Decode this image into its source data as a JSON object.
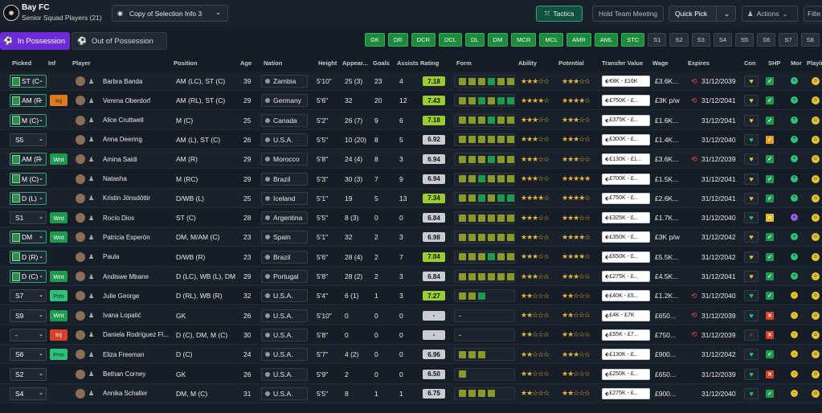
{
  "header": {
    "club_name": "Bay FC",
    "squad_name": "Senior Squad Players (21)",
    "selection": "Copy of Selection Info 3",
    "tactics": "Tactics",
    "hold_meeting": "Hold Team Meeting",
    "quick_pick": "Quick Pick",
    "actions": "Actions",
    "filter": "Filte"
  },
  "tabs": {
    "in_possession": "In Possession",
    "out_possession": "Out of Possession"
  },
  "position_chips": [
    {
      "label": "GK",
      "active": true
    },
    {
      "label": "DR",
      "active": true
    },
    {
      "label": "DCR",
      "active": true
    },
    {
      "label": "DCL",
      "active": true
    },
    {
      "label": "DL",
      "active": true
    },
    {
      "label": "DM",
      "active": true
    },
    {
      "label": "MCR",
      "active": true
    },
    {
      "label": "MCL",
      "active": true
    },
    {
      "label": "AMR",
      "active": true
    },
    {
      "label": "AML",
      "active": true
    },
    {
      "label": "STC",
      "active": true
    },
    {
      "label": "S1",
      "active": false
    },
    {
      "label": "S2",
      "active": false
    },
    {
      "label": "S3",
      "active": false
    },
    {
      "label": "S4",
      "active": false
    },
    {
      "label": "S5",
      "active": false
    },
    {
      "label": "S6",
      "active": false
    },
    {
      "label": "S7",
      "active": false
    },
    {
      "label": "S8",
      "active": false
    }
  ],
  "columns": {
    "picked": "Picked",
    "inf": "Inf",
    "player": "Player",
    "position": "Position",
    "age": "Age",
    "nation": "Nation",
    "height": "Height",
    "appearances": "Appear...",
    "goals": "Goals",
    "assists": "Assists",
    "rating": "Rating",
    "form": "Form",
    "ability": "Ability",
    "potential": "Potential",
    "transfer_value": "Transfer Value",
    "wage": "Wage",
    "expires": "Expires",
    "con": "Con",
    "shp": "SHP",
    "mor": "Mor",
    "playing": "Playin"
  },
  "colors": {
    "accent": "#6c2ad8",
    "green": "#1e8a3e",
    "rating_green": "#9acd32",
    "rating_grey": "#c9ccd2"
  },
  "players": [
    {
      "picked": "ST (C",
      "pitch": true,
      "inf": "",
      "name": "Barbra Banda",
      "position": "AM (LC), ST (C)",
      "age": "39",
      "nation": "Zambia",
      "height": "5'10\"",
      "apps": "25 (3)",
      "goals": "23",
      "assists": "4",
      "rating": "7.18",
      "rating_color": "#9acd32",
      "form": [
        "#8a9a2a",
        "#8a9a2a",
        "#8a9a2a",
        "#1e9a4e",
        "#8a9a2a",
        "#8a9a2a"
      ],
      "ability": "★★★☆☆",
      "potential": "★★★☆☆",
      "tv": "€8K - £16K",
      "wage": "£3.6K...",
      "expires": "31/12/2039",
      "clock": true,
      "con": "♥",
      "con_color": "#d9c84a",
      "shp": "✓",
      "shp_color": "#1e9a4e",
      "mor_color": "#2fc07a",
      "mor": "+"
    },
    {
      "picked": "AM (R",
      "pitch": true,
      "inf": "Inj",
      "inf_class": "inj2",
      "name": "Verena Oberdorf",
      "position": "AM (RL), ST (C)",
      "age": "29",
      "nation": "Germany",
      "height": "5'6\"",
      "apps": "32",
      "goals": "20",
      "assists": "12",
      "rating": "7.43",
      "rating_color": "#9acd32",
      "form": [
        "#8a9a2a",
        "#8a9a2a",
        "#1e9a4e",
        "#8a9a2a",
        "#1e9a4e",
        "#1e9a4e"
      ],
      "ability": "★★★★☆",
      "potential": "★★★★☆",
      "tv": "£750K - £...",
      "wage": "£3K p/w",
      "expires": "31/12/2041",
      "clock": true,
      "con": "♥",
      "con_color": "#d9c84a",
      "shp": "✓",
      "shp_color": "#1e9a4e",
      "mor_color": "#2fc07a",
      "mor": "+"
    },
    {
      "picked": "M (C)",
      "pitch": true,
      "inf": "",
      "name": "Alice Cruttwell",
      "position": "M (C)",
      "age": "25",
      "nation": "Canada",
      "height": "5'2\"",
      "apps": "26 (7)",
      "goals": "9",
      "assists": "6",
      "rating": "7.18",
      "rating_color": "#9acd32",
      "form": [
        "#8a9a2a",
        "#8a9a2a",
        "#8a9a2a",
        "#1e9a4e",
        "#8a9a2a",
        "#8a9a2a"
      ],
      "ability": "★★★☆☆",
      "potential": "★★★☆☆",
      "tv": "£375K - £...",
      "wage": "£1.6K...",
      "expires": "31/12/2041",
      "clock": false,
      "con": "♥",
      "con_color": "#d9c84a",
      "shp": "✓",
      "shp_color": "#1e9a4e",
      "mor_color": "#2fc07a",
      "mor": "+"
    },
    {
      "picked": "S5",
      "pitch": false,
      "inf": "",
      "name": "Anna Deering",
      "position": "AM (L), ST (C)",
      "age": "26",
      "nation": "U.S.A.",
      "height": "5'5\"",
      "apps": "10 (20)",
      "goals": "8",
      "assists": "5",
      "rating": "6.92",
      "rating_color": "#c9ccd2",
      "form": [
        "#8a9a2a",
        "#8a9a2a",
        "#8a9a2a",
        "#8a9a2a",
        "#8a9a2a",
        "#8a9a2a"
      ],
      "ability": "★★★☆☆",
      "potential": "★★★☆☆",
      "tv": "£300K - £...",
      "wage": "£1.4K...",
      "expires": "31/12/2040",
      "clock": false,
      "con": "♥",
      "con_color": "#2fc07a",
      "shp": "✓",
      "shp_color": "#e0a020",
      "mor_color": "#2fc07a",
      "mor": "+"
    },
    {
      "picked": "AM (R",
      "pitch": true,
      "inf": "Wnt",
      "inf_class": "wnt",
      "name": "Amina Saidi",
      "position": "AM (R)",
      "age": "29",
      "nation": "Morocco",
      "height": "5'8\"",
      "apps": "24 (4)",
      "goals": "8",
      "assists": "3",
      "rating": "6.94",
      "rating_color": "#c9ccd2",
      "form": [
        "#8a9a2a",
        "#8a9a2a",
        "#8a9a2a",
        "#1e9a4e",
        "#8a9a2a",
        "#8a9a2a"
      ],
      "ability": "★★★☆☆",
      "potential": "★★★☆☆",
      "tv": "£130K - £1...",
      "wage": "£3.6K...",
      "expires": "31/12/2039",
      "clock": true,
      "con": "♥",
      "con_color": "#d9c84a",
      "shp": "✓",
      "shp_color": "#1e9a4e",
      "mor_color": "#2fc07a",
      "mor": "+"
    },
    {
      "picked": "M (C)",
      "pitch": true,
      "inf": "",
      "name": "Natasha",
      "position": "M (RC)",
      "age": "29",
      "nation": "Brazil",
      "height": "5'3\"",
      "apps": "30 (3)",
      "goals": "7",
      "assists": "9",
      "rating": "6.94",
      "rating_color": "#c9ccd2",
      "form": [
        "#8a9a2a",
        "#8a9a2a",
        "#1e9a4e",
        "#8a9a2a",
        "#8a9a2a",
        "#8a9a2a"
      ],
      "ability": "★★★☆☆",
      "potential": "★★★★★",
      "tv": "£700K - £...",
      "wage": "£1.5K...",
      "expires": "31/12/2041",
      "clock": false,
      "con": "♥",
      "con_color": "#d9c84a",
      "shp": "✓",
      "shp_color": "#1e9a4e",
      "mor_color": "#2fc07a",
      "mor": "+"
    },
    {
      "picked": "D (L)",
      "pitch": true,
      "inf": "",
      "name": "Kristin Jónsdóttir",
      "position": "D/WB (L)",
      "age": "25",
      "nation": "Iceland",
      "height": "5'1\"",
      "apps": "19",
      "goals": "5",
      "assists": "13",
      "rating": "7.34",
      "rating_color": "#9acd32",
      "form": [
        "#8a9a2a",
        "#8a9a2a",
        "#1e9a4e",
        "#8a9a2a",
        "#1e9a4e",
        "#1e9a4e"
      ],
      "ability": "★★★★☆",
      "potential": "★★★★☆",
      "tv": "£750K - £...",
      "wage": "£2.6K...",
      "expires": "31/12/2041",
      "clock": false,
      "con": "♥",
      "con_color": "#d9c84a",
      "shp": "✓",
      "shp_color": "#1e9a4e",
      "mor_color": "#2fc07a",
      "mor": "+"
    },
    {
      "picked": "S1",
      "pitch": false,
      "inf": "Wnt",
      "inf_class": "wnt",
      "name": "Rocío Dios",
      "position": "ST (C)",
      "age": "28",
      "nation": "Argentina",
      "height": "5'5\"",
      "apps": "8 (3)",
      "goals": "0",
      "assists": "0",
      "rating": "6.84",
      "rating_color": "#c9ccd2",
      "form": [
        "#8a9a2a",
        "#8a9a2a",
        "#8a9a2a",
        "#8a9a2a",
        "#8a9a2a",
        "#8a9a2a"
      ],
      "ability": "★★★☆☆",
      "potential": "★★★☆☆",
      "tv": "£325K - £...",
      "wage": "£1.7K...",
      "expires": "31/12/2040",
      "clock": false,
      "con": "♥",
      "con_color": "#2fc07a",
      "shp": "≡",
      "shp_color": "#e0c02a",
      "mor_color": "#9a5ae0",
      "mor": "+"
    },
    {
      "picked": "DM",
      "pitch": true,
      "inf": "Wnt",
      "inf_class": "wnt",
      "name": "Patricia Esperón",
      "position": "DM, M/AM (C)",
      "age": "23",
      "nation": "Spain",
      "height": "5'1\"",
      "apps": "32",
      "goals": "2",
      "assists": "3",
      "rating": "6.98",
      "rating_color": "#c9ccd2",
      "form": [
        "#8a9a2a",
        "#8a9a2a",
        "#8a9a2a",
        "#8a9a2a",
        "#8a9a2a",
        "#8a9a2a"
      ],
      "ability": "★★★☆☆",
      "potential": "★★★★☆",
      "tv": "£350K - £...",
      "wage": "£3K p/w",
      "expires": "31/12/2042",
      "clock": false,
      "con": "♥",
      "con_color": "#d9c84a",
      "shp": "✓",
      "shp_color": "#1e9a4e",
      "mor_color": "#2fc07a",
      "mor": "+"
    },
    {
      "picked": "D (R)",
      "pitch": true,
      "inf": "",
      "name": "Paula",
      "position": "D/WB (R)",
      "age": "23",
      "nation": "Brazil",
      "height": "5'6\"",
      "apps": "28 (4)",
      "goals": "2",
      "assists": "7",
      "rating": "7.04",
      "rating_color": "#9acd32",
      "form": [
        "#8a9a2a",
        "#8a9a2a",
        "#8a9a2a",
        "#1e9a4e",
        "#8a9a2a",
        "#8a9a2a"
      ],
      "ability": "★★★☆☆",
      "potential": "★★★★☆",
      "tv": "£650K - £...",
      "wage": "£5.5K...",
      "expires": "31/12/2042",
      "clock": false,
      "con": "♥",
      "con_color": "#d9c84a",
      "shp": "✓",
      "shp_color": "#1e9a4e",
      "mor_color": "#2fc07a",
      "mor": "+"
    },
    {
      "picked": "D (C)",
      "pitch": true,
      "inf": "Wnt",
      "inf_class": "wnt",
      "name": "Andiswe Mbane",
      "position": "D (LC), WB (L), DM",
      "age": "29",
      "nation": "Portugal",
      "height": "5'8\"",
      "apps": "28 (2)",
      "goals": "2",
      "assists": "3",
      "rating": "6.84",
      "rating_color": "#c9ccd2",
      "form": [
        "#8a9a2a",
        "#8a9a2a",
        "#8a9a2a",
        "#8a9a2a",
        "#8a9a2a",
        "#8a9a2a"
      ],
      "ability": "★★★☆☆",
      "potential": "★★★☆☆",
      "tv": "£275K - £...",
      "wage": "£4.5K...",
      "expires": "31/12/2041",
      "clock": false,
      "con": "♥",
      "con_color": "#d9c84a",
      "shp": "✓",
      "shp_color": "#1e9a4e",
      "mor_color": "#2fc07a",
      "mor": "+"
    },
    {
      "picked": "S7",
      "pitch": false,
      "inf": "Prm",
      "inf_class": "prm",
      "name": "Julie George",
      "position": "D (RL), WB (R)",
      "age": "32",
      "nation": "U.S.A.",
      "height": "5'4\"",
      "apps": "6 (1)",
      "goals": "1",
      "assists": "3",
      "rating": "7.27",
      "rating_color": "#9acd32",
      "form": [
        "#8a9a2a",
        "#8a9a2a",
        "#1e9a4e"
      ],
      "ability": "★★☆☆☆",
      "potential": "★★☆☆☆",
      "tv": "£40K - £5...",
      "wage": "£1.2K...",
      "expires": "31/12/2040",
      "clock": true,
      "con": "♥",
      "con_color": "#2fc07a",
      "shp": "✓",
      "shp_color": "#1e9a4e",
      "mor_color": "#e0c02a",
      "mor": "-"
    },
    {
      "picked": "S9",
      "pitch": false,
      "inf": "Wnt",
      "inf_class": "wnt",
      "name": "Ivana Lopatić",
      "position": "GK",
      "age": "26",
      "nation": "U.S.A.",
      "height": "5'10\"",
      "apps": "0",
      "goals": "0",
      "assists": "0",
      "rating": "-",
      "rating_color": "#c9ccd2",
      "form": [],
      "form_dash": true,
      "ability": "★★☆☆☆",
      "potential": "★★☆☆☆",
      "tv": "£4K - £7K",
      "wage": "£650...",
      "expires": "31/12/2039",
      "clock": true,
      "con": "♥",
      "con_color": "#2fc07a",
      "shp": "✕",
      "shp_color": "#d8402a",
      "mor_color": "#e0c02a",
      "mor": "-"
    },
    {
      "picked": "-",
      "pitch": false,
      "inf": "Inj",
      "inf_class": "inj",
      "name": "Daniela Rodríguez Fl...",
      "position": "D (C), DM, M (C)",
      "age": "30",
      "nation": "U.S.A.",
      "height": "5'8\"",
      "apps": "0",
      "goals": "0",
      "assists": "0",
      "rating": "-",
      "rating_color": "#c9ccd2",
      "form": [],
      "form_dash": true,
      "ability": "★★☆☆☆",
      "potential": "★★☆☆☆",
      "tv": "£55K - £7...",
      "wage": "£750...",
      "expires": "31/12/2039",
      "clock": true,
      "con": "+",
      "con_color": "#d8402a",
      "shp": "✕",
      "shp_color": "#d8402a",
      "mor_color": "#e0c02a",
      "mor": "-"
    },
    {
      "picked": "S6",
      "pitch": false,
      "inf": "Prm",
      "inf_class": "prm",
      "name": "Eliza Freeman",
      "position": "D (C)",
      "age": "24",
      "nation": "U.S.A.",
      "height": "5'7\"",
      "apps": "4 (2)",
      "goals": "0",
      "assists": "0",
      "rating": "6.96",
      "rating_color": "#c9ccd2",
      "form": [
        "#8a9a2a",
        "#8a9a2a",
        "#8a9a2a"
      ],
      "ability": "★★☆☆☆",
      "potential": "★★★☆☆",
      "tv": "£130K - £...",
      "wage": "£900...",
      "expires": "31/12/2042",
      "clock": false,
      "con": "♥",
      "con_color": "#2fc07a",
      "shp": "✓",
      "shp_color": "#1e9a4e",
      "mor_color": "#e0c02a",
      "mor": "-"
    },
    {
      "picked": "S2",
      "pitch": false,
      "inf": "",
      "name": "Bethan Corney",
      "position": "GK",
      "age": "26",
      "nation": "U.S.A.",
      "height": "5'9\"",
      "apps": "2",
      "goals": "0",
      "assists": "0",
      "rating": "6.50",
      "rating_color": "#c9ccd2",
      "form": [
        "#8a9a2a"
      ],
      "ability": "★★☆☆☆",
      "potential": "★★☆☆☆",
      "tv": "£250K - £...",
      "wage": "£650...",
      "expires": "31/12/2039",
      "clock": false,
      "con": "♥",
      "con_color": "#2fc07a",
      "shp": "✕",
      "shp_color": "#d8402a",
      "mor_color": "#e0c02a",
      "mor": "-"
    },
    {
      "picked": "S4",
      "pitch": false,
      "inf": "",
      "name": "Annika Schaller",
      "position": "DM, M (C)",
      "age": "31",
      "nation": "U.S.A.",
      "height": "5'5\"",
      "apps": "8",
      "goals": "1",
      "assists": "1",
      "rating": "6.75",
      "rating_color": "#c9ccd2",
      "form": [
        "#8a9a2a",
        "#8a9a2a",
        "#8a9a2a",
        "#8a9a2a"
      ],
      "ability": "★★☆☆☆",
      "potential": "★★☆☆☆",
      "tv": "£275K - £...",
      "wage": "£900...",
      "expires": "31/12/2040",
      "clock": false,
      "con": "♥",
      "con_color": "#2fc07a",
      "shp": "✓",
      "shp_color": "#1e9a4e",
      "mor_color": "#e0c02a",
      "mor": "-"
    }
  ]
}
